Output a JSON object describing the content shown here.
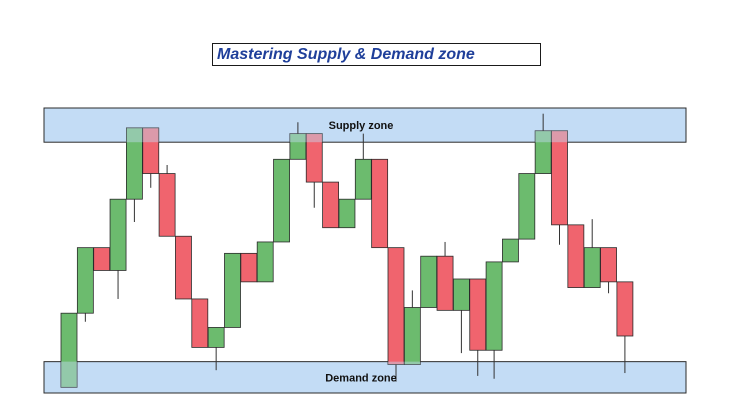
{
  "title": "Mastering Supply & Demand zone",
  "colors": {
    "bullish": "#6cbb6e",
    "bearish": "#f0646e",
    "zone_fill": "#c3dcf5",
    "zone_stroke": "#2b2b2b",
    "overlap_fill": "#8ab5a0",
    "wick": "#333333"
  },
  "chart_data": {
    "type": "candlestick",
    "title": "Mastering Supply & Demand zone",
    "ylim": [
      0,
      100
    ],
    "zones": [
      {
        "name": "supply",
        "label": "Supply zone",
        "low": 88,
        "high": 100
      },
      {
        "name": "demand",
        "label": "Demand zone",
        "low": 0,
        "high": 11
      }
    ],
    "candles": [
      {
        "open": 2,
        "close": 28,
        "high": 28,
        "low": 2
      },
      {
        "open": 28,
        "close": 51,
        "high": 51,
        "low": 25
      },
      {
        "open": 51,
        "close": 43,
        "high": 51,
        "low": 43
      },
      {
        "open": 43,
        "close": 68,
        "high": 68,
        "low": 33
      },
      {
        "open": 68,
        "close": 93,
        "high": 93,
        "low": 60
      },
      {
        "open": 93,
        "close": 77,
        "high": 93,
        "low": 72
      },
      {
        "open": 77,
        "close": 55,
        "high": 80,
        "low": 55
      },
      {
        "open": 55,
        "close": 33,
        "high": 55,
        "low": 33
      },
      {
        "open": 33,
        "close": 16,
        "high": 33,
        "low": 16
      },
      {
        "open": 16,
        "close": 23,
        "high": 23,
        "low": 8
      },
      {
        "open": 23,
        "close": 49,
        "high": 49,
        "low": 23
      },
      {
        "open": 49,
        "close": 39,
        "high": 49,
        "low": 39
      },
      {
        "open": 39,
        "close": 53,
        "high": 53,
        "low": 39
      },
      {
        "open": 53,
        "close": 82,
        "high": 82,
        "low": 53
      },
      {
        "open": 82,
        "close": 91,
        "high": 95,
        "low": 82
      },
      {
        "open": 91,
        "close": 74,
        "high": 91,
        "low": 65
      },
      {
        "open": 74,
        "close": 58,
        "high": 74,
        "low": 58
      },
      {
        "open": 58,
        "close": 68,
        "high": 68,
        "low": 58
      },
      {
        "open": 68,
        "close": 82,
        "high": 91,
        "low": 68
      },
      {
        "open": 82,
        "close": 51,
        "high": 82,
        "low": 51
      },
      {
        "open": 51,
        "close": 10,
        "high": 51,
        "low": 4
      },
      {
        "open": 10,
        "close": 30,
        "high": 36,
        "low": 10
      },
      {
        "open": 30,
        "close": 48,
        "high": 48,
        "low": 30
      },
      {
        "open": 48,
        "close": 29,
        "high": 53,
        "low": 29
      },
      {
        "open": 29,
        "close": 40,
        "high": 40,
        "low": 14
      },
      {
        "open": 40,
        "close": 15,
        "high": 40,
        "low": 6
      },
      {
        "open": 15,
        "close": 46,
        "high": 46,
        "low": 5
      },
      {
        "open": 46,
        "close": 54,
        "high": 54,
        "low": 46
      },
      {
        "open": 54,
        "close": 77,
        "high": 77,
        "low": 54
      },
      {
        "open": 77,
        "close": 92,
        "high": 98,
        "low": 77
      },
      {
        "open": 92,
        "close": 59,
        "high": 92,
        "low": 52
      },
      {
        "open": 59,
        "close": 37,
        "high": 59,
        "low": 37
      },
      {
        "open": 37,
        "close": 51,
        "high": 61,
        "low": 37
      },
      {
        "open": 51,
        "close": 39,
        "high": 51,
        "low": 35
      },
      {
        "open": 39,
        "close": 20,
        "high": 39,
        "low": 7
      }
    ]
  }
}
